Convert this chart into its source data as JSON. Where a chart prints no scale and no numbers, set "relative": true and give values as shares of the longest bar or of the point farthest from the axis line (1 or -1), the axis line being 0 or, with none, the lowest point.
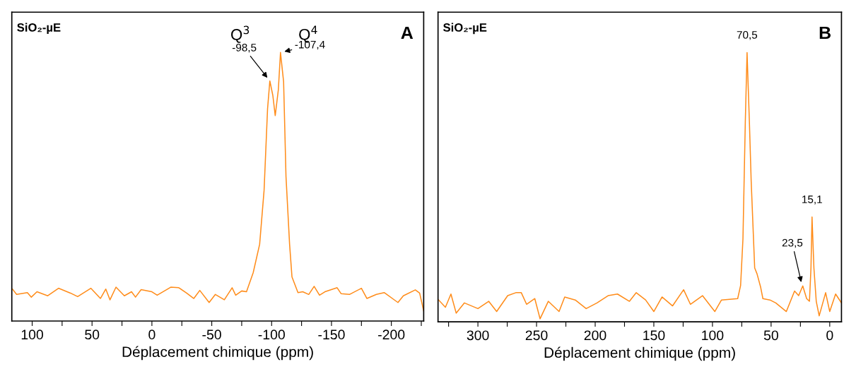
{
  "chart_data": [
    {
      "type": "line",
      "title": "SiO₂-µE",
      "xlabel": "Déplacement chimique (ppm)",
      "relative": true,
      "legend": false,
      "grid": false,
      "xlim": [
        117,
        -227
      ],
      "xticks": [
        100,
        {
          "value": 75,
          "label": null
        },
        50,
        {
          "value": 25,
          "label": null
        },
        0,
        {
          "value": -25,
          "label": null
        },
        -50,
        {
          "value": -75,
          "label": null
        },
        -100,
        {
          "value": -125,
          "label": null
        },
        -150,
        {
          "value": -175,
          "label": null
        },
        -200,
        {
          "value": -225,
          "label": null
        }
      ],
      "tick_labels": "x",
      "series": [
        {
          "color": "#ff8c1a",
          "x": [
            116.5,
            113,
            104,
            100.7,
            96,
            87,
            78,
            68,
            62,
            51,
            43,
            38.5,
            35,
            30,
            23,
            17,
            13.7,
            9,
            0,
            -4.4,
            -15.7,
            -22.5,
            -29,
            -35,
            -40,
            -47.8,
            -53,
            -60.5,
            -67,
            -70,
            -75,
            -79,
            -84.6,
            -90,
            -93.7,
            -96.6,
            -98.5,
            -101,
            -103,
            -105.6,
            -107.4,
            -110,
            -112,
            -115,
            -117,
            -122,
            -126,
            -131,
            -135.5,
            -140,
            -144.5,
            -154.7,
            -158,
            -165,
            -175,
            -179.6,
            -187.5,
            -194,
            -205.5,
            -210,
            -220,
            -223.6,
            -227
          ],
          "values": [
            0.119,
            0.099,
            0.106,
            0.089,
            0.109,
            0.094,
            0.122,
            0.104,
            0.091,
            0.122,
            0.084,
            0.119,
            0.079,
            0.126,
            0.094,
            0.109,
            0.089,
            0.117,
            0.109,
            0.096,
            0.126,
            0.124,
            0.104,
            0.084,
            0.114,
            0.069,
            0.099,
            0.079,
            0.124,
            0.096,
            0.112,
            0.109,
            0.18,
            0.286,
            0.487,
            0.79,
            0.894,
            0.84,
            0.765,
            0.861,
            1.0,
            0.891,
            0.538,
            0.286,
            0.164,
            0.106,
            0.109,
            0.099,
            0.129,
            0.096,
            0.109,
            0.124,
            0.102,
            0.099,
            0.122,
            0.084,
            0.099,
            0.106,
            0.069,
            0.094,
            0.116,
            0.104,
            0.038
          ]
        }
      ],
      "annotations": [
        "A",
        "Q$^{3}$",
        "Q$^{4}$",
        {
          "text": "-98,5",
          "x": -98.5,
          "y": 0.894
        },
        {
          "text": "-107,4",
          "x": -107.4,
          "y": 1.0
        }
      ]
    },
    {
      "type": "line",
      "title": "SiO₂-µE",
      "xlabel": "Déplacement chimique (ppm)",
      "relative": true,
      "legend": false,
      "grid": false,
      "xlim": [
        334,
        -10
      ],
      "xticks": [
        {
          "value": 325,
          "label": null
        },
        300,
        {
          "value": 275,
          "label": null
        },
        250,
        {
          "value": 225,
          "label": null
        },
        200,
        {
          "value": 175,
          "label": null
        },
        150,
        {
          "value": 125,
          "label": null
        },
        100,
        {
          "value": 75,
          "label": null
        },
        50,
        {
          "value": 25,
          "label": null
        },
        0
      ],
      "tick_labels": "x",
      "series": [
        {
          "color": "#ff8c1a",
          "x": [
            333.5,
            327.7,
            323,
            318.5,
            311.5,
            300,
            290.8,
            284,
            274.6,
            267.7,
            263,
            258.5,
            251.5,
            247,
            240,
            230.8,
            226,
            217,
            207.7,
            198.5,
            189,
            181,
            170.8,
            165,
            157,
            150,
            143,
            134,
            124.6,
            118.8,
            108.5,
            98,
            92.3,
            78.5,
            76,
            74,
            72,
            70.5,
            68.5,
            67,
            64,
            62,
            59,
            57,
            51,
            46,
            37,
            30,
            26.5,
            23,
            19.7,
            17.3,
            16,
            15.1,
            13.5,
            11.5,
            9,
            3.5,
            0,
            -5,
            -10
          ],
          "values": [
            0.081,
            0.054,
            0.103,
            0.032,
            0.07,
            0.049,
            0.076,
            0.038,
            0.097,
            0.108,
            0.108,
            0.065,
            0.086,
            0.011,
            0.076,
            0.038,
            0.092,
            0.081,
            0.049,
            0.07,
            0.097,
            0.103,
            0.076,
            0.108,
            0.081,
            0.038,
            0.092,
            0.059,
            0.119,
            0.065,
            0.097,
            0.038,
            0.081,
            0.086,
            0.135,
            0.308,
            0.741,
            1.0,
            0.741,
            0.524,
            0.2,
            0.178,
            0.13,
            0.086,
            0.081,
            0.07,
            0.038,
            0.114,
            0.097,
            0.133,
            0.086,
            0.076,
            0.2,
            0.389,
            0.2,
            0.076,
            0.022,
            0.108,
            0.038,
            0.103,
            0.07
          ]
        }
      ],
      "annotations": [
        "B",
        {
          "text": "70,5",
          "x": 70.5,
          "y": 1.0
        },
        {
          "text": "15,1",
          "x": 15.1,
          "y": 0.389
        },
        {
          "text": "23,5",
          "x": 23.5,
          "y": 0.133
        }
      ]
    }
  ]
}
